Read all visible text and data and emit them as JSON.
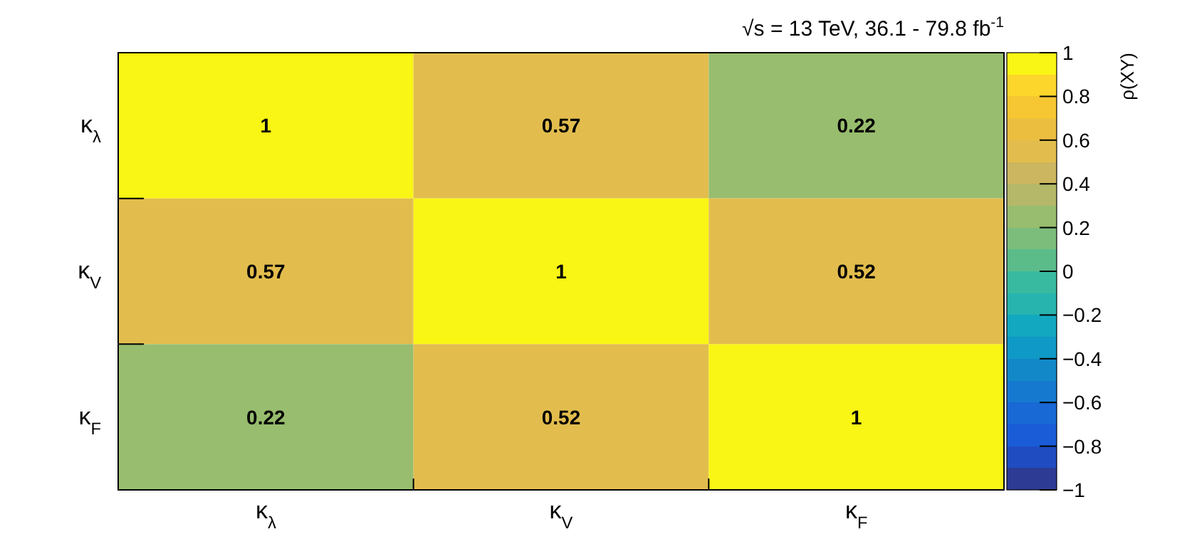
{
  "chart_data": {
    "type": "heatmap",
    "title": "√s = 13 TeV, 36.1 - 79.8 fb$^{-1}$",
    "clabel": "ρ(XY)",
    "categories": [
      "κ$_{λ}$",
      "κ$_{V}$",
      "κ$_{F}$"
    ],
    "y_categories": [
      "κ$_{λ}$",
      "κ$_{V}$",
      "κ$_{F}$"
    ],
    "cells": [
      [
        1,
        0.57,
        0.22
      ],
      [
        0.57,
        1,
        0.52
      ],
      [
        0.22,
        0.52,
        1
      ]
    ],
    "data_labels": true,
    "clim": [
      -1,
      1
    ],
    "cticks": [
      -1,
      -0.8,
      -0.6,
      -0.4,
      -0.2,
      0,
      0.2,
      0.4,
      0.6,
      0.8,
      1
    ]
  }
}
